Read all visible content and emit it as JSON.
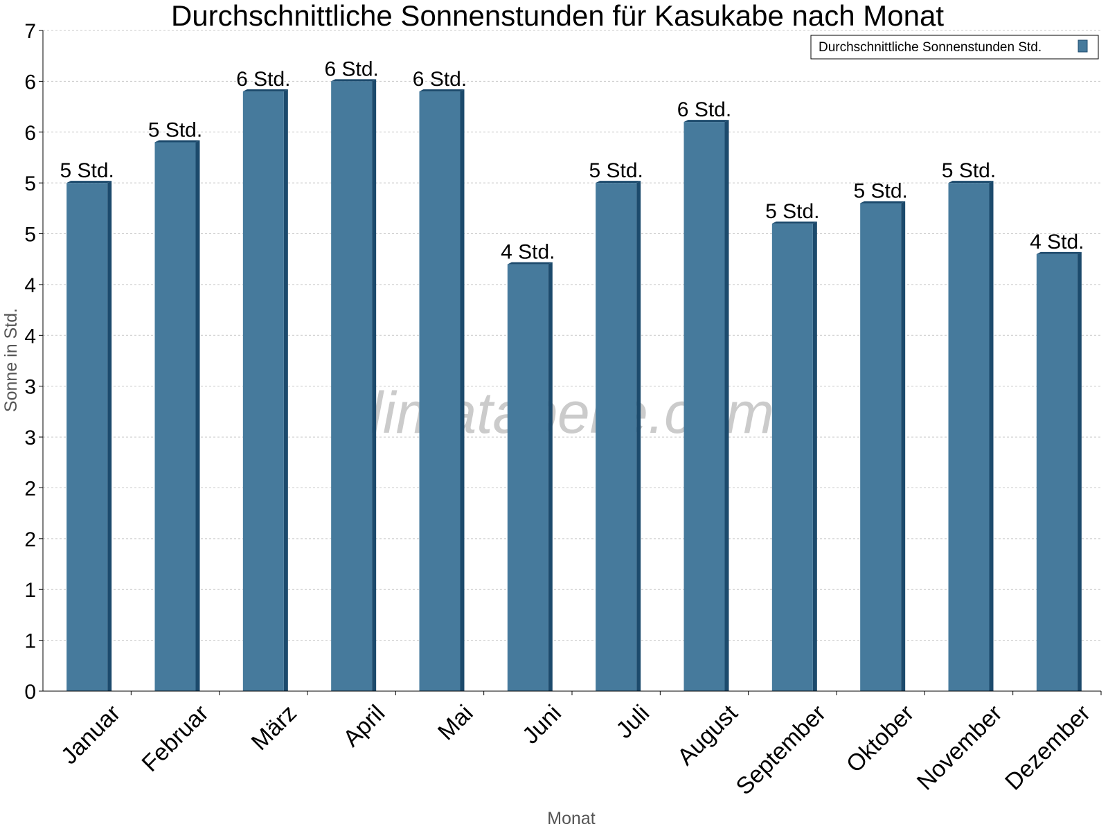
{
  "chart_data": {
    "type": "bar",
    "title": "Durchschnittliche Sonnenstunden für Kasukabe nach Monat",
    "xlabel": "Monat",
    "ylabel": "Sonne in Std.",
    "ylim": [
      0,
      6.5
    ],
    "y_tick_values": [
      0,
      0.5,
      1,
      1.5,
      2,
      2.5,
      3,
      3.5,
      4,
      4.5,
      5,
      5.5,
      6,
      6.5
    ],
    "y_tick_labels": [
      "0",
      "1",
      "1",
      "2",
      "2",
      "3",
      "3",
      "4",
      "4",
      "5",
      "5",
      "6",
      "6",
      "7"
    ],
    "categories": [
      "Januar",
      "Februar",
      "März",
      "April",
      "Mai",
      "Juni",
      "Juli",
      "August",
      "September",
      "Oktober",
      "November",
      "Dezember"
    ],
    "series": [
      {
        "name": "Durchschnittliche Sonnenstunden Std.",
        "values": [
          5.0,
          5.4,
          5.9,
          6.0,
          5.9,
          4.2,
          5.0,
          5.6,
          4.6,
          4.8,
          5.0,
          4.3
        ],
        "labels": [
          "5 Std.",
          "5 Std.",
          "6 Std.",
          "6 Std.",
          "6 Std.",
          "4 Std.",
          "5 Std.",
          "6 Std.",
          "5 Std.",
          "5 Std.",
          "5 Std.",
          "4 Std."
        ],
        "color": "#467a9c",
        "side_color": "#1c4a6c"
      }
    ],
    "grid": true,
    "legend_position": "top-right",
    "watermark": "klimatabelle.com"
  }
}
